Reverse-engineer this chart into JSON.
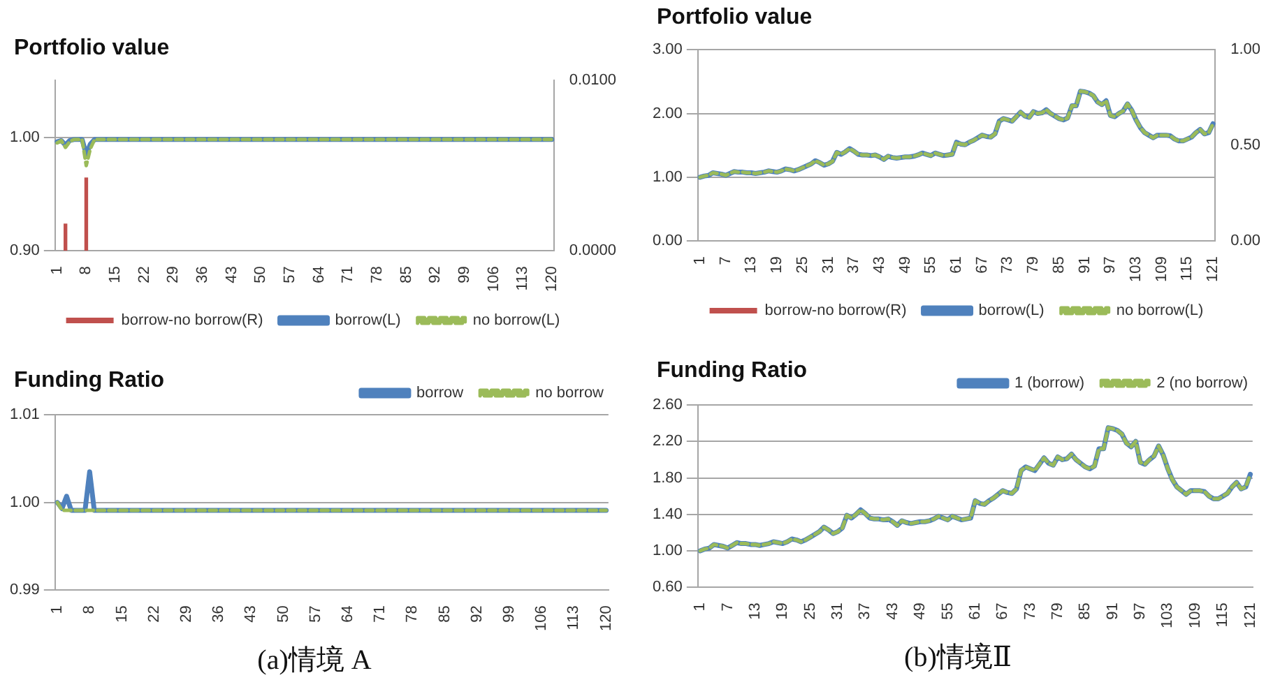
{
  "chart_data": [
    {
      "type": "line",
      "title": "Portfolio value",
      "categories": [
        "1",
        null,
        null,
        null,
        null,
        null,
        null,
        "8",
        null,
        null,
        null,
        null,
        null,
        null,
        "15",
        null,
        null,
        null,
        null,
        null,
        null,
        "22",
        null,
        null,
        null,
        null,
        null,
        null,
        "29",
        null,
        null,
        null,
        null,
        null,
        null,
        "36",
        null,
        null,
        null,
        null,
        null,
        null,
        "43",
        null,
        null,
        null,
        null,
        null,
        null,
        "50",
        null,
        null,
        null,
        null,
        null,
        null,
        "57",
        null,
        null,
        null,
        null,
        null,
        null,
        "64",
        null,
        null,
        null,
        null,
        null,
        null,
        "71",
        null,
        null,
        null,
        null,
        null,
        null,
        "78",
        null,
        null,
        null,
        null,
        null,
        null,
        "85",
        null,
        null,
        null,
        null,
        null,
        null,
        "92",
        null,
        null,
        null,
        null,
        null,
        null,
        "99",
        null,
        null,
        null,
        null,
        null,
        null,
        "106",
        null,
        null,
        null,
        null,
        null,
        null,
        "113",
        null,
        null,
        null,
        null,
        null,
        null,
        "120"
      ],
      "series": [
        {
          "name": "borrow-no borrow(R)",
          "type": "bar",
          "axis": "y2",
          "color": "#c0504d",
          "values": [
            0,
            0,
            0.0016,
            0,
            0,
            0,
            0,
            0.0043,
            0,
            0,
            0,
            0,
            0,
            0,
            0,
            0,
            0,
            0,
            0,
            0,
            0,
            0,
            0,
            0,
            0,
            0,
            0,
            0,
            0,
            0,
            0,
            0,
            0,
            0,
            0,
            0,
            0,
            0,
            0,
            0,
            0,
            0,
            0,
            0,
            0,
            0,
            0,
            0,
            0,
            0,
            0,
            0,
            0,
            0,
            0,
            0,
            0,
            0,
            0,
            0,
            0,
            0,
            0,
            0,
            0,
            0,
            0,
            0,
            0,
            0,
            0,
            0,
            0,
            0,
            0,
            0,
            0,
            0,
            0,
            0,
            0,
            0,
            0,
            0,
            0,
            0,
            0,
            0,
            0,
            0,
            0,
            0,
            0,
            0,
            0,
            0,
            0,
            0,
            0,
            0,
            0,
            0,
            0,
            0,
            0,
            0,
            0,
            0,
            0,
            0,
            0,
            0,
            0,
            0,
            0,
            0,
            0,
            0,
            0,
            0
          ]
        },
        {
          "name": "borrow(L)",
          "color": "#4f81bd",
          "line_style": "solid",
          "values": [
            0.996,
            0.997,
            0.993,
            0.997,
            0.998,
            0.998,
            0.998,
            0.985,
            0.994,
            0.998,
            0.998,
            0.998,
            0.998,
            0.998,
            0.998,
            0.998,
            0.998,
            0.998,
            0.998,
            0.998,
            0.998,
            0.998,
            0.998,
            0.998,
            0.998,
            0.998,
            0.998,
            0.998,
            0.998,
            0.998,
            0.998,
            0.998,
            0.998,
            0.998,
            0.998,
            0.998,
            0.998,
            0.998,
            0.998,
            0.998,
            0.998,
            0.998,
            0.998,
            0.998,
            0.998,
            0.998,
            0.998,
            0.998,
            0.998,
            0.998,
            0.998,
            0.998,
            0.998,
            0.998,
            0.998,
            0.998,
            0.998,
            0.998,
            0.998,
            0.998,
            0.998,
            0.998,
            0.998,
            0.998,
            0.998,
            0.998,
            0.998,
            0.998,
            0.998,
            0.998,
            0.998,
            0.998,
            0.998,
            0.998,
            0.998,
            0.998,
            0.998,
            0.998,
            0.998,
            0.998,
            0.998,
            0.998,
            0.998,
            0.998,
            0.998,
            0.998,
            0.998,
            0.998,
            0.998,
            0.998,
            0.998,
            0.998,
            0.998,
            0.998,
            0.998,
            0.998,
            0.998,
            0.998,
            0.998,
            0.998,
            0.998,
            0.998,
            0.998,
            0.998,
            0.998,
            0.998,
            0.998,
            0.998,
            0.998,
            0.998,
            0.998,
            0.998,
            0.998,
            0.998,
            0.998,
            0.998,
            0.998,
            0.998,
            0.998,
            0.998
          ]
        },
        {
          "name": "no borrow(L)",
          "color": "#9bbb59",
          "line_style": "dashed",
          "values": [
            0.995,
            0.997,
            0.991,
            0.996,
            0.998,
            0.998,
            0.998,
            0.975,
            0.99,
            0.998,
            0.998,
            0.998,
            0.998,
            0.998,
            0.998,
            0.998,
            0.998,
            0.998,
            0.998,
            0.998,
            0.998,
            0.998,
            0.998,
            0.998,
            0.998,
            0.998,
            0.998,
            0.998,
            0.998,
            0.998,
            0.998,
            0.998,
            0.998,
            0.998,
            0.998,
            0.998,
            0.998,
            0.998,
            0.998,
            0.998,
            0.998,
            0.998,
            0.998,
            0.998,
            0.998,
            0.998,
            0.998,
            0.998,
            0.998,
            0.998,
            0.998,
            0.998,
            0.998,
            0.998,
            0.998,
            0.998,
            0.998,
            0.998,
            0.998,
            0.998,
            0.998,
            0.998,
            0.998,
            0.998,
            0.998,
            0.998,
            0.998,
            0.998,
            0.998,
            0.998,
            0.998,
            0.998,
            0.998,
            0.998,
            0.998,
            0.998,
            0.998,
            0.998,
            0.998,
            0.998,
            0.998,
            0.998,
            0.998,
            0.998,
            0.998,
            0.998,
            0.998,
            0.998,
            0.998,
            0.998,
            0.998,
            0.998,
            0.998,
            0.998,
            0.998,
            0.998,
            0.998,
            0.998,
            0.998,
            0.998,
            0.998,
            0.998,
            0.998,
            0.998,
            0.998,
            0.998,
            0.998,
            0.998,
            0.998,
            0.998,
            0.998,
            0.998,
            0.998,
            0.998,
            0.998,
            0.998,
            0.998,
            0.998,
            0.998,
            0.998
          ]
        }
      ],
      "ylim": [
        0.9,
        1.05
      ],
      "yticks": [
        {
          "value": 0.9,
          "label": "0.90"
        },
        {
          "value": 1.0,
          "label": "1.00"
        }
      ],
      "y2lim": [
        0,
        0.01
      ],
      "y2ticks": [
        {
          "value": 0,
          "label": "0.0000"
        },
        {
          "value": 0.01,
          "label": "0.0100"
        }
      ],
      "grid": "y",
      "legend": "bottom",
      "marker": "none"
    },
    {
      "type": "line",
      "title": "Funding Ratio",
      "categories": [
        "1",
        null,
        null,
        null,
        null,
        null,
        null,
        "8",
        null,
        null,
        null,
        null,
        null,
        null,
        "15",
        null,
        null,
        null,
        null,
        null,
        null,
        "22",
        null,
        null,
        null,
        null,
        null,
        null,
        "29",
        null,
        null,
        null,
        null,
        null,
        null,
        "36",
        null,
        null,
        null,
        null,
        null,
        null,
        "43",
        null,
        null,
        null,
        null,
        null,
        null,
        "50",
        null,
        null,
        null,
        null,
        null,
        null,
        "57",
        null,
        null,
        null,
        null,
        null,
        null,
        "64",
        null,
        null,
        null,
        null,
        null,
        null,
        "71",
        null,
        null,
        null,
        null,
        null,
        null,
        "78",
        null,
        null,
        null,
        null,
        null,
        null,
        "85",
        null,
        null,
        null,
        null,
        null,
        null,
        "92",
        null,
        null,
        null,
        null,
        null,
        null,
        "99",
        null,
        null,
        null,
        null,
        null,
        null,
        "106",
        null,
        null,
        null,
        null,
        null,
        null,
        "113",
        null,
        null,
        null,
        null,
        null,
        null,
        "120"
      ],
      "series": [
        {
          "name": "borrow",
          "color": "#4f81bd",
          "line_style": "solid",
          "values": [
            1.0,
            0.9993,
            1.0007,
            0.9991,
            0.9991,
            0.9991,
            0.9991,
            1.0035,
            0.9991,
            0.9991,
            0.9991,
            0.9991,
            0.9991,
            0.9991,
            0.9991,
            0.9991,
            0.9991,
            0.9991,
            0.9991,
            0.9991,
            0.9991,
            0.9991,
            0.9991,
            0.9991,
            0.9991,
            0.9991,
            0.9991,
            0.9991,
            0.9991,
            0.9991,
            0.9991,
            0.9991,
            0.9991,
            0.9991,
            0.9991,
            0.9991,
            0.9991,
            0.9991,
            0.9991,
            0.9991,
            0.9991,
            0.9991,
            0.9991,
            0.9991,
            0.9991,
            0.9991,
            0.9991,
            0.9991,
            0.9991,
            0.9991,
            0.9991,
            0.9991,
            0.9991,
            0.9991,
            0.9991,
            0.9991,
            0.9991,
            0.9991,
            0.9991,
            0.9991,
            0.9991,
            0.9991,
            0.9991,
            0.9991,
            0.9991,
            0.9991,
            0.9991,
            0.9991,
            0.9991,
            0.9991,
            0.9991,
            0.9991,
            0.9991,
            0.9991,
            0.9991,
            0.9991,
            0.9991,
            0.9991,
            0.9991,
            0.9991,
            0.9991,
            0.9991,
            0.9991,
            0.9991,
            0.9991,
            0.9991,
            0.9991,
            0.9991,
            0.9991,
            0.9991,
            0.9991,
            0.9991,
            0.9991,
            0.9991,
            0.9991,
            0.9991,
            0.9991,
            0.9991,
            0.9991,
            0.9991,
            0.9991,
            0.9991,
            0.9991,
            0.9991,
            0.9991,
            0.9991,
            0.9991,
            0.9991,
            0.9991,
            0.9991,
            0.9991,
            0.9991,
            0.9991,
            0.9991,
            0.9991,
            0.9991,
            0.9991,
            0.9991,
            0.9991,
            0.9991
          ]
        },
        {
          "name": "no borrow",
          "color": "#9bbb59",
          "line_style": "dashed",
          "values": [
            1.0,
            0.9991,
            0.9991,
            0.9991,
            0.9991,
            0.9991,
            0.9991,
            0.9991,
            0.9991,
            0.9991,
            0.9991,
            0.9991,
            0.9991,
            0.9991,
            0.9991,
            0.9991,
            0.9991,
            0.9991,
            0.9991,
            0.9991,
            0.9991,
            0.9991,
            0.9991,
            0.9991,
            0.9991,
            0.9991,
            0.9991,
            0.9991,
            0.9991,
            0.9991,
            0.9991,
            0.9991,
            0.9991,
            0.9991,
            0.9991,
            0.9991,
            0.9991,
            0.9991,
            0.9991,
            0.9991,
            0.9991,
            0.9991,
            0.9991,
            0.9991,
            0.9991,
            0.9991,
            0.9991,
            0.9991,
            0.9991,
            0.9991,
            0.9991,
            0.9991,
            0.9991,
            0.9991,
            0.9991,
            0.9991,
            0.9991,
            0.9991,
            0.9991,
            0.9991,
            0.9991,
            0.9991,
            0.9991,
            0.9991,
            0.9991,
            0.9991,
            0.9991,
            0.9991,
            0.9991,
            0.9991,
            0.9991,
            0.9991,
            0.9991,
            0.9991,
            0.9991,
            0.9991,
            0.9991,
            0.9991,
            0.9991,
            0.9991,
            0.9991,
            0.9991,
            0.9991,
            0.9991,
            0.9991,
            0.9991,
            0.9991,
            0.9991,
            0.9991,
            0.9991,
            0.9991,
            0.9991,
            0.9991,
            0.9991,
            0.9991,
            0.9991,
            0.9991,
            0.9991,
            0.9991,
            0.9991,
            0.9991,
            0.9991,
            0.9991,
            0.9991,
            0.9991,
            0.9991,
            0.9991,
            0.9991,
            0.9991,
            0.9991,
            0.9991,
            0.9991,
            0.9991,
            0.9991,
            0.9991,
            0.9991,
            0.9991,
            0.9991,
            0.9991,
            0.9991
          ]
        }
      ],
      "ylim": [
        0.99,
        1.01
      ],
      "yticks": [
        {
          "value": 0.99,
          "label": "0.99"
        },
        {
          "value": 1.0,
          "label": "1.00"
        },
        {
          "value": 1.01,
          "label": "1.01"
        }
      ],
      "grid": "y",
      "legend": "top right",
      "marker": "none",
      "annotations": [
        "(a)情境 A"
      ]
    },
    {
      "type": "line",
      "title": "Portfolio value",
      "categories": [
        "1",
        null,
        null,
        null,
        null,
        null,
        "7",
        null,
        null,
        null,
        null,
        null,
        "13",
        null,
        null,
        null,
        null,
        null,
        "19",
        null,
        null,
        null,
        null,
        null,
        "25",
        null,
        null,
        null,
        null,
        null,
        "31",
        null,
        null,
        null,
        null,
        null,
        "37",
        null,
        null,
        null,
        null,
        null,
        "43",
        null,
        null,
        null,
        null,
        null,
        "49",
        null,
        null,
        null,
        null,
        null,
        "55",
        null,
        null,
        null,
        null,
        null,
        "61",
        null,
        null,
        null,
        null,
        null,
        "67",
        null,
        null,
        null,
        null,
        null,
        "73",
        null,
        null,
        null,
        null,
        null,
        "79",
        null,
        null,
        null,
        null,
        null,
        "85",
        null,
        null,
        null,
        null,
        null,
        "91",
        null,
        null,
        null,
        null,
        null,
        "97",
        null,
        null,
        null,
        null,
        null,
        "103",
        null,
        null,
        null,
        null,
        null,
        "109",
        null,
        null,
        null,
        null,
        null,
        "115",
        null,
        null,
        null,
        null,
        null,
        "121"
      ],
      "series": [
        {
          "name": "borrow-no borrow(R)",
          "type": "bar",
          "axis": "y2",
          "color": "#c0504d",
          "values": [
            0,
            0,
            0,
            0,
            0,
            0,
            0,
            0,
            0,
            0,
            0,
            0,
            0,
            0,
            0,
            0,
            0,
            0,
            0,
            0,
            0,
            0,
            0,
            0,
            0,
            0,
            0,
            0,
            0,
            0,
            0,
            0,
            0,
            0,
            0,
            0,
            0,
            0,
            0,
            0,
            0,
            0,
            0,
            0,
            0,
            0,
            0,
            0,
            0,
            0,
            0,
            0,
            0,
            0,
            0,
            0,
            0,
            0,
            0,
            0,
            0,
            0,
            0,
            0,
            0,
            0,
            0,
            0,
            0,
            0,
            0,
            0,
            0,
            0,
            0,
            0,
            0,
            0,
            0,
            0,
            0,
            0,
            0,
            0,
            0,
            0,
            0,
            0,
            0,
            0,
            0,
            0,
            0,
            0,
            0,
            0,
            0,
            0,
            0,
            0,
            0,
            0,
            0,
            0,
            0,
            0,
            0,
            0,
            0,
            0,
            0,
            0,
            0,
            0,
            0,
            0,
            0,
            0,
            0,
            0,
            0
          ]
        },
        {
          "name": "borrow(L)",
          "color": "#4f81bd",
          "line_style": "solid",
          "values": [
            1.0,
            1.02,
            1.03,
            1.07,
            1.06,
            1.05,
            1.03,
            1.06,
            1.09,
            1.08,
            1.08,
            1.07,
            1.07,
            1.06,
            1.07,
            1.08,
            1.1,
            1.09,
            1.08,
            1.1,
            1.13,
            1.12,
            1.1,
            1.12,
            1.15,
            1.18,
            1.21,
            1.26,
            1.23,
            1.19,
            1.21,
            1.25,
            1.39,
            1.36,
            1.4,
            1.45,
            1.41,
            1.36,
            1.35,
            1.35,
            1.34,
            1.35,
            1.32,
            1.28,
            1.33,
            1.31,
            1.3,
            1.31,
            1.32,
            1.32,
            1.33,
            1.35,
            1.38,
            1.36,
            1.34,
            1.38,
            1.36,
            1.34,
            1.35,
            1.36,
            1.55,
            1.52,
            1.51,
            1.55,
            1.58,
            1.62,
            1.66,
            1.64,
            1.63,
            1.68,
            1.88,
            1.92,
            1.9,
            1.88,
            1.95,
            2.02,
            1.96,
            1.94,
            2.03,
            2.0,
            2.01,
            2.06,
            2.0,
            1.96,
            1.92,
            1.9,
            1.93,
            2.12,
            2.12,
            2.35,
            2.34,
            2.32,
            2.28,
            2.18,
            2.14,
            2.2,
            1.97,
            1.95,
            2.0,
            2.04,
            2.15,
            2.05,
            1.9,
            1.78,
            1.7,
            1.66,
            1.62,
            1.66,
            1.66,
            1.66,
            1.65,
            1.6,
            1.57,
            1.57,
            1.6,
            1.63,
            1.7,
            1.75,
            1.68,
            1.7,
            1.84
          ]
        },
        {
          "name": "no borrow(L)",
          "color": "#9bbb59",
          "line_style": "dashed",
          "values": [
            1.0,
            1.02,
            1.03,
            1.07,
            1.06,
            1.05,
            1.03,
            1.06,
            1.09,
            1.08,
            1.08,
            1.07,
            1.07,
            1.06,
            1.07,
            1.08,
            1.1,
            1.09,
            1.08,
            1.1,
            1.13,
            1.12,
            1.1,
            1.12,
            1.15,
            1.18,
            1.21,
            1.26,
            1.23,
            1.19,
            1.21,
            1.25,
            1.39,
            1.36,
            1.4,
            1.45,
            1.41,
            1.36,
            1.35,
            1.35,
            1.34,
            1.35,
            1.32,
            1.28,
            1.33,
            1.31,
            1.3,
            1.31,
            1.32,
            1.32,
            1.33,
            1.35,
            1.38,
            1.36,
            1.34,
            1.38,
            1.36,
            1.34,
            1.35,
            1.36,
            1.55,
            1.52,
            1.51,
            1.55,
            1.58,
            1.62,
            1.66,
            1.64,
            1.63,
            1.68,
            1.88,
            1.92,
            1.9,
            1.88,
            1.95,
            2.02,
            1.96,
            1.94,
            2.03,
            2.0,
            2.01,
            2.06,
            2.0,
            1.96,
            1.92,
            1.9,
            1.93,
            2.12,
            2.12,
            2.35,
            2.34,
            2.32,
            2.28,
            2.18,
            2.14,
            2.2,
            1.97,
            1.95,
            2.0,
            2.04,
            2.15,
            2.05,
            1.9,
            1.78,
            1.7,
            1.66,
            1.62,
            1.66,
            1.66,
            1.66,
            1.65,
            1.6,
            1.57,
            1.57,
            1.6,
            1.63,
            1.7,
            1.75,
            1.68,
            1.7,
            1.84
          ]
        }
      ],
      "ylim": [
        0,
        3
      ],
      "yticks": [
        {
          "value": 0,
          "label": "0.00"
        },
        {
          "value": 1,
          "label": "1.00"
        },
        {
          "value": 2,
          "label": "2.00"
        },
        {
          "value": 3,
          "label": "3.00"
        }
      ],
      "y2lim": [
        0,
        1
      ],
      "y2ticks": [
        {
          "value": 0,
          "label": "0.00"
        },
        {
          "value": 0.5,
          "label": "0.50"
        },
        {
          "value": 1,
          "label": "1.00"
        }
      ],
      "grid": "y",
      "legend": "bottom",
      "marker": "none"
    },
    {
      "type": "line",
      "title": "Funding Ratio",
      "categories": [
        "1",
        null,
        null,
        null,
        null,
        null,
        "7",
        null,
        null,
        null,
        null,
        null,
        "13",
        null,
        null,
        null,
        null,
        null,
        "19",
        null,
        null,
        null,
        null,
        null,
        "25",
        null,
        null,
        null,
        null,
        null,
        "31",
        null,
        null,
        null,
        null,
        null,
        "37",
        null,
        null,
        null,
        null,
        null,
        "43",
        null,
        null,
        null,
        null,
        null,
        "49",
        null,
        null,
        null,
        null,
        null,
        "55",
        null,
        null,
        null,
        null,
        null,
        "61",
        null,
        null,
        null,
        null,
        null,
        "67",
        null,
        null,
        null,
        null,
        null,
        "73",
        null,
        null,
        null,
        null,
        null,
        "79",
        null,
        null,
        null,
        null,
        null,
        "85",
        null,
        null,
        null,
        null,
        null,
        "91",
        null,
        null,
        null,
        null,
        null,
        "97",
        null,
        null,
        null,
        null,
        null,
        "103",
        null,
        null,
        null,
        null,
        null,
        "109",
        null,
        null,
        null,
        null,
        null,
        "115",
        null,
        null,
        null,
        null,
        null,
        "121"
      ],
      "series": [
        {
          "name": "1 (borrow)",
          "color": "#4f81bd",
          "line_style": "solid",
          "values": [
            1.0,
            1.02,
            1.03,
            1.07,
            1.06,
            1.05,
            1.03,
            1.06,
            1.09,
            1.08,
            1.08,
            1.07,
            1.07,
            1.06,
            1.07,
            1.08,
            1.1,
            1.09,
            1.08,
            1.1,
            1.13,
            1.12,
            1.1,
            1.12,
            1.15,
            1.18,
            1.21,
            1.26,
            1.23,
            1.19,
            1.21,
            1.25,
            1.39,
            1.36,
            1.4,
            1.45,
            1.41,
            1.36,
            1.35,
            1.35,
            1.34,
            1.35,
            1.32,
            1.28,
            1.33,
            1.31,
            1.3,
            1.31,
            1.32,
            1.32,
            1.33,
            1.35,
            1.38,
            1.36,
            1.34,
            1.38,
            1.36,
            1.34,
            1.35,
            1.36,
            1.55,
            1.52,
            1.51,
            1.55,
            1.58,
            1.62,
            1.66,
            1.64,
            1.63,
            1.68,
            1.88,
            1.92,
            1.9,
            1.88,
            1.95,
            2.02,
            1.96,
            1.94,
            2.03,
            2.0,
            2.01,
            2.06,
            2.0,
            1.96,
            1.92,
            1.9,
            1.93,
            2.12,
            2.12,
            2.35,
            2.34,
            2.32,
            2.28,
            2.18,
            2.14,
            2.2,
            1.97,
            1.95,
            2.0,
            2.04,
            2.15,
            2.05,
            1.9,
            1.78,
            1.7,
            1.66,
            1.62,
            1.66,
            1.66,
            1.66,
            1.65,
            1.6,
            1.57,
            1.57,
            1.6,
            1.63,
            1.7,
            1.75,
            1.68,
            1.7,
            1.84
          ]
        },
        {
          "name": "2 (no borrow)",
          "color": "#9bbb59",
          "line_style": "dashed",
          "values": [
            1.0,
            1.02,
            1.03,
            1.07,
            1.06,
            1.05,
            1.03,
            1.06,
            1.09,
            1.08,
            1.08,
            1.07,
            1.07,
            1.06,
            1.07,
            1.08,
            1.1,
            1.09,
            1.08,
            1.1,
            1.13,
            1.12,
            1.1,
            1.12,
            1.15,
            1.18,
            1.21,
            1.26,
            1.23,
            1.19,
            1.21,
            1.25,
            1.39,
            1.36,
            1.4,
            1.45,
            1.41,
            1.36,
            1.35,
            1.35,
            1.34,
            1.35,
            1.32,
            1.28,
            1.33,
            1.31,
            1.3,
            1.31,
            1.32,
            1.32,
            1.33,
            1.35,
            1.38,
            1.36,
            1.34,
            1.38,
            1.36,
            1.34,
            1.35,
            1.36,
            1.55,
            1.52,
            1.51,
            1.55,
            1.58,
            1.62,
            1.66,
            1.64,
            1.63,
            1.68,
            1.88,
            1.92,
            1.9,
            1.88,
            1.95,
            2.02,
            1.96,
            1.94,
            2.03,
            2.0,
            2.01,
            2.06,
            2.0,
            1.96,
            1.92,
            1.9,
            1.93,
            2.12,
            2.12,
            2.35,
            2.34,
            2.32,
            2.28,
            2.18,
            2.14,
            2.2,
            1.97,
            1.95,
            2.0,
            2.04,
            2.15,
            2.05,
            1.9,
            1.78,
            1.7,
            1.66,
            1.62,
            1.66,
            1.66,
            1.66,
            1.65,
            1.6,
            1.57,
            1.57,
            1.6,
            1.63,
            1.7,
            1.75,
            1.68,
            1.7,
            1.84
          ]
        }
      ],
      "ylim": [
        0.6,
        2.6
      ],
      "yticks": [
        {
          "value": 0.6,
          "label": "0.60"
        },
        {
          "value": 1.0,
          "label": "1.00"
        },
        {
          "value": 1.4,
          "label": "1.40"
        },
        {
          "value": 1.8,
          "label": "1.80"
        },
        {
          "value": 2.2,
          "label": "2.20"
        },
        {
          "value": 2.6,
          "label": "2.60"
        }
      ],
      "grid": "y",
      "legend": "top right",
      "marker": "none",
      "annotations": [
        "(b)情境Ⅱ"
      ]
    }
  ]
}
